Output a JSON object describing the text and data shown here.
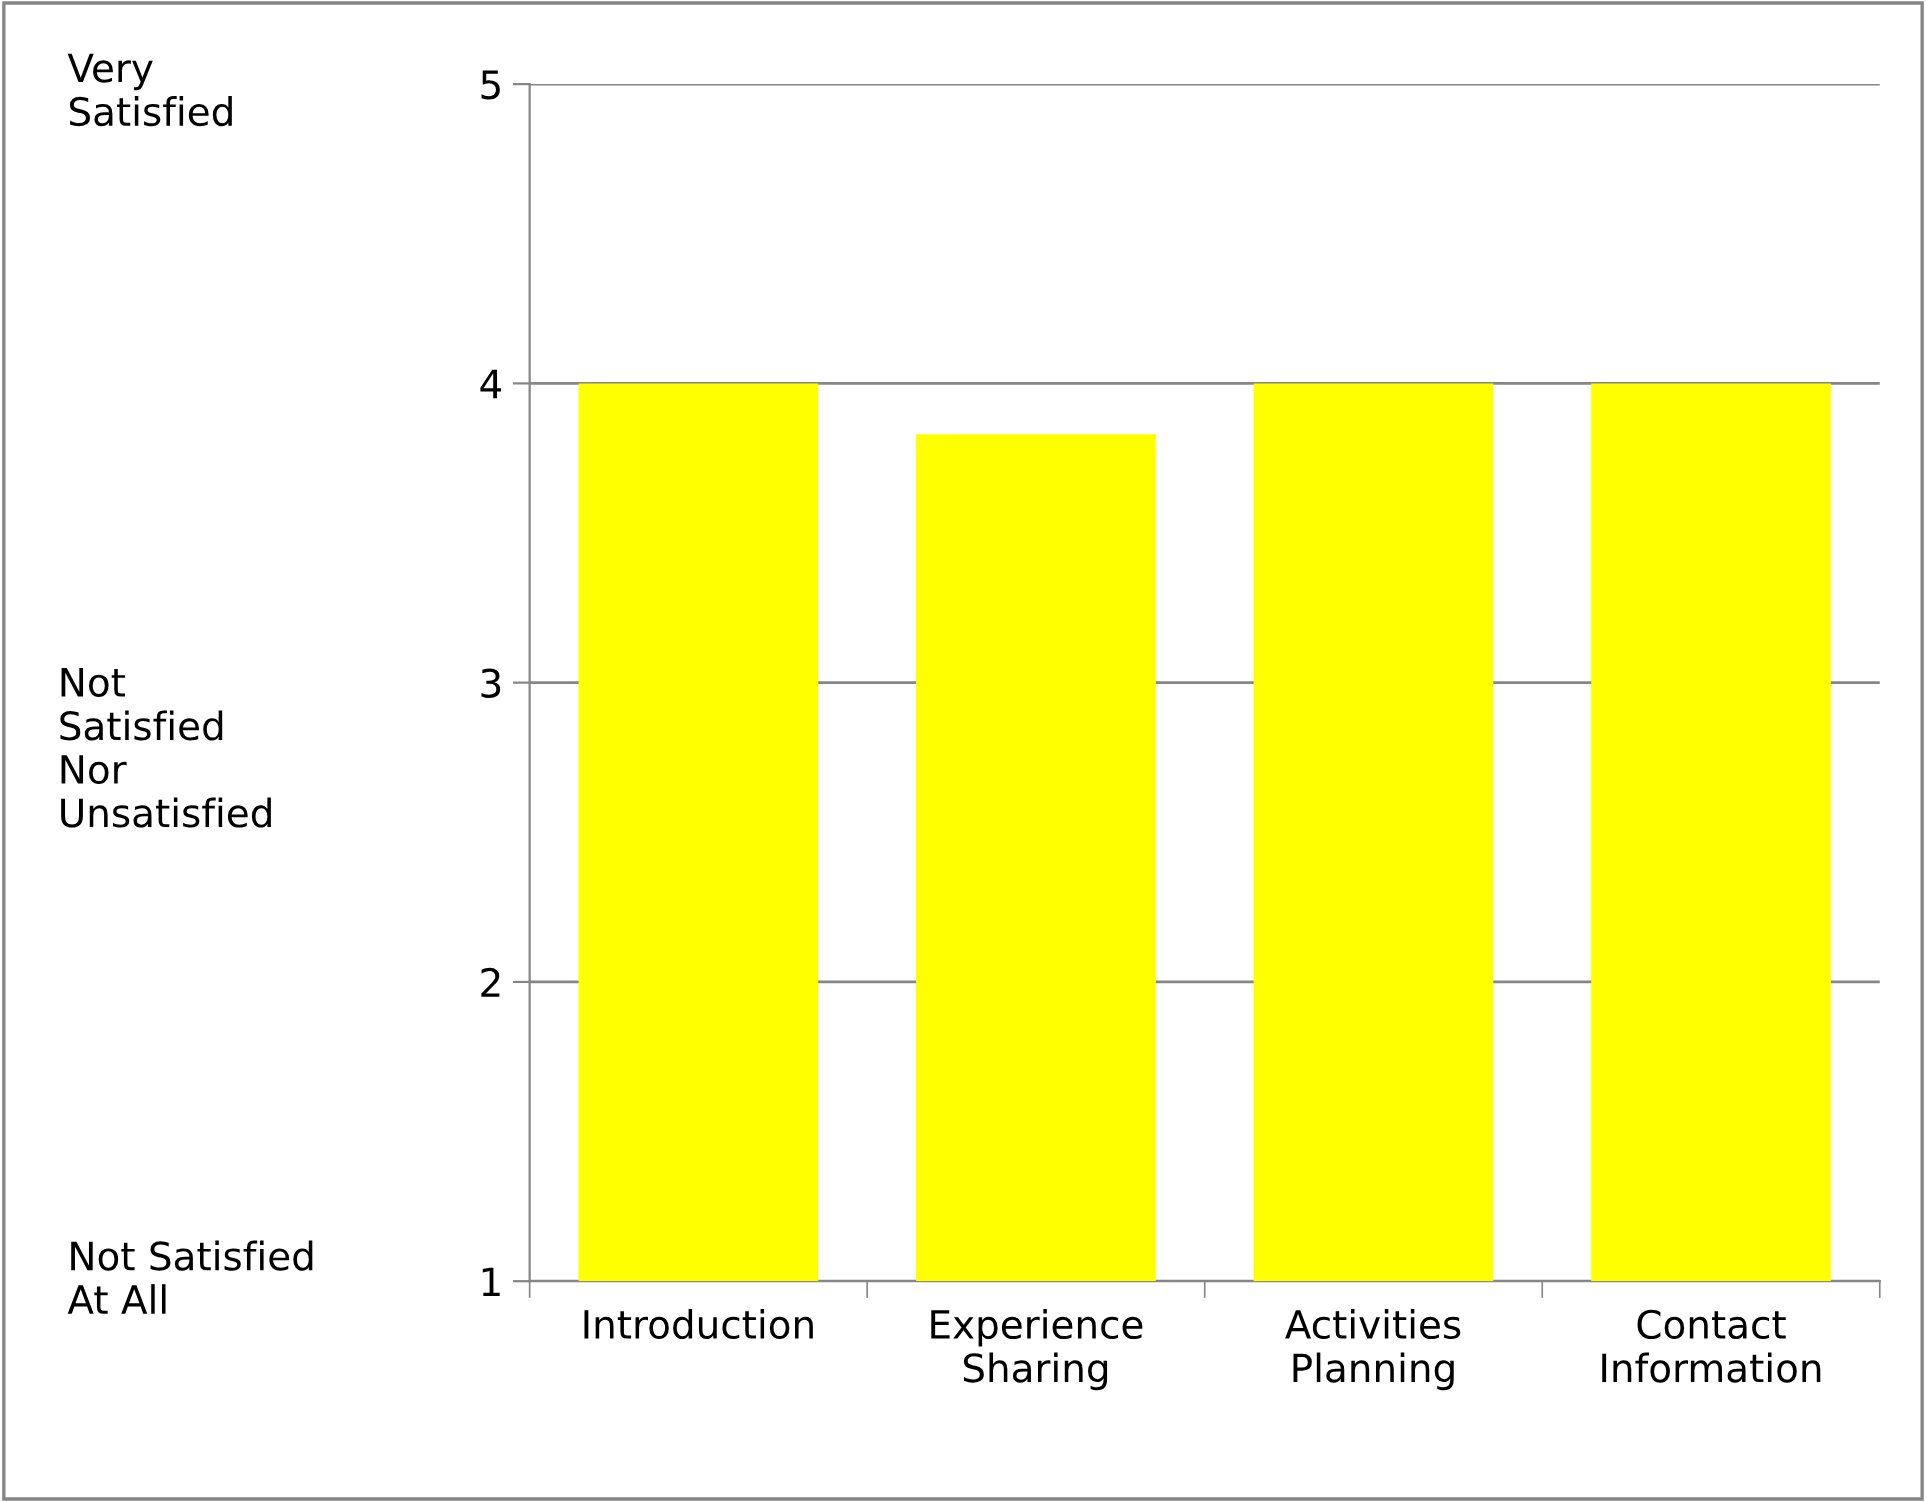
{
  "chart_data": {
    "type": "bar",
    "categories": [
      "Introduction",
      "Experience\nSharing",
      "Activities\nPlanning",
      "Contact\nInformation"
    ],
    "values": [
      4,
      3.83,
      4,
      4
    ],
    "color": "#ffff00",
    "ylim": [
      1,
      5
    ],
    "yticks": [
      1,
      2,
      3,
      4,
      5
    ],
    "grid": "y",
    "annotations": [
      "Very\nSatisfied",
      "Not\nSatisfied\nNor\nUnsatisfied",
      "Not Satisfied\nAt All"
    ]
  }
}
